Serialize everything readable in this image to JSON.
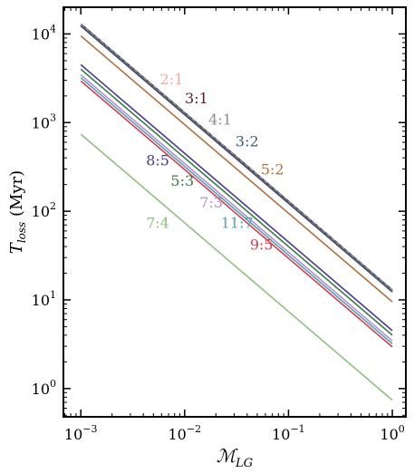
{
  "chart_data": {
    "type": "line",
    "xlabel": "ℳ",
    "xlabel_sub": "LG",
    "ylabel": "T",
    "ylabel_sub": "loss",
    "ylabel_unit": " (Myr)",
    "xscale": "log",
    "yscale": "log",
    "xlim": [
      0.00068,
      1.35
    ],
    "ylim": [
      0.48,
      20000
    ],
    "x_ticks": [
      {
        "value": 0.001,
        "base": "10",
        "exp": "−3"
      },
      {
        "value": 0.01,
        "base": "10",
        "exp": "−2"
      },
      {
        "value": 0.1,
        "base": "10",
        "exp": "−1"
      },
      {
        "value": 1,
        "base": "10",
        "exp": "0"
      }
    ],
    "y_ticks": [
      {
        "value": 1,
        "base": "10",
        "exp": "0"
      },
      {
        "value": 10,
        "base": "10",
        "exp": "1"
      },
      {
        "value": 100,
        "base": "10",
        "exp": "2"
      },
      {
        "value": 1000,
        "base": "10",
        "exp": "3"
      },
      {
        "value": 10000,
        "base": "10",
        "exp": "4"
      }
    ],
    "grid": false,
    "legend": "none",
    "series": [
      {
        "name": "2:1",
        "color": "#f4a6a6",
        "dashed": true,
        "x": [
          0.001,
          1
        ],
        "y": [
          12800,
          12.8
        ],
        "label_at": [
          0.0075,
          2700
        ]
      },
      {
        "name": "3:1",
        "color": "#5a1a33",
        "dashed": false,
        "x": [
          0.001,
          1
        ],
        "y": [
          12300,
          12.3
        ],
        "label_at": [
          0.013,
          1650
        ]
      },
      {
        "name": "4:1",
        "color": "#8c8c8c",
        "dashed": false,
        "x": [
          0.001,
          1
        ],
        "y": [
          12600,
          12.6
        ],
        "label_at": [
          0.022,
          950
        ]
      },
      {
        "name": "5:2",
        "color": "#b07040",
        "dashed": false,
        "x": [
          0.001,
          1
        ],
        "y": [
          9500,
          9.5
        ],
        "label_at": [
          0.07,
          260
        ]
      },
      {
        "name": "3:2",
        "color": "#3a5a7a",
        "dashed": false,
        "x": [
          0.001,
          1
        ],
        "y": [
          12400,
          12.4
        ],
        "label_at": [
          0.04,
          540
        ]
      },
      {
        "name": "8:5",
        "color": "#4a3a8a",
        "dashed": false,
        "x": [
          0.001,
          1
        ],
        "y": [
          4500,
          4.5
        ],
        "label_at": [
          0.0055,
          330
        ]
      },
      {
        "name": "5:3",
        "color": "#3a7a4a",
        "dashed": false,
        "x": [
          0.001,
          1
        ],
        "y": [
          4000,
          4.0
        ],
        "label_at": [
          0.0095,
          195
        ]
      },
      {
        "name": "7:3",
        "color": "#b090d0",
        "dashed": false,
        "x": [
          0.001,
          1
        ],
        "y": [
          3450,
          3.45
        ],
        "label_at": [
          0.018,
          110
        ]
      },
      {
        "name": "11:7",
        "color": "#5aa0b0",
        "dashed": false,
        "x": [
          0.001,
          1
        ],
        "y": [
          3200,
          3.2
        ],
        "label_at": [
          0.032,
          65
        ]
      },
      {
        "name": "9:5",
        "color": "#d04050",
        "dashed": false,
        "x": [
          0.001,
          1
        ],
        "y": [
          2950,
          2.95
        ],
        "label_at": [
          0.055,
          37
        ]
      },
      {
        "name": "7:4",
        "color": "#90c080",
        "dashed": false,
        "x": [
          0.001,
          1
        ],
        "y": [
          740,
          0.74
        ],
        "label_at": [
          0.0055,
          65
        ]
      }
    ]
  }
}
